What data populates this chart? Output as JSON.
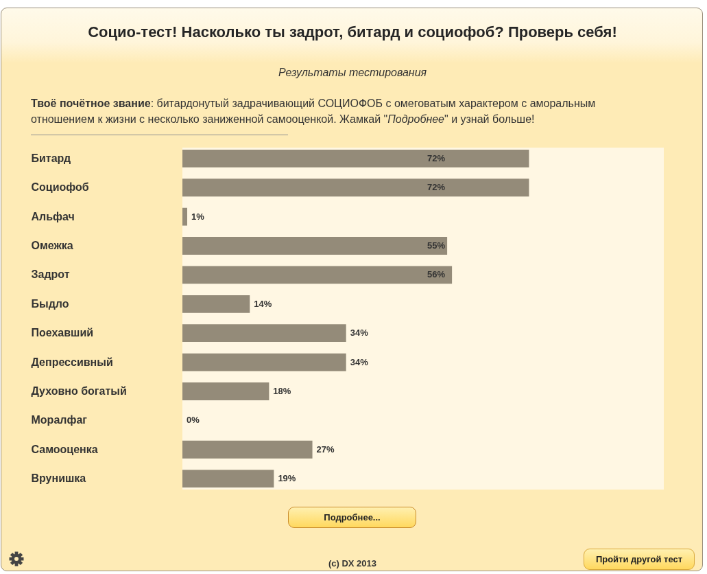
{
  "chart_data": {
    "type": "bar",
    "orientation": "horizontal",
    "title": "Социо-тест! Насколько ты задрот, битард и социофоб? Проверь себя!",
    "subtitle": "Результаты тестирования",
    "categories": [
      "Битард",
      "Социофоб",
      "Альфач",
      "Омежка",
      "Задрот",
      "Быдло",
      "Поехавший",
      "Депрессивный",
      "Духовно богатый",
      "Моралфаг",
      "Самооценка",
      "Врунишка"
    ],
    "values": [
      72,
      72,
      1,
      55,
      56,
      14,
      34,
      34,
      18,
      0,
      27,
      19
    ],
    "value_labels": [
      "72%",
      "72%",
      "1%",
      "55%",
      "56%",
      "14%",
      "34%",
      "34%",
      "18%",
      "0%",
      "27%",
      "19%"
    ],
    "color": "#948b79",
    "xlim": [
      0,
      100
    ],
    "tick_labels": "y",
    "annotations": [
      "Твоё почётное звание: битардонутый задрачивающий СОЦИОФОБ с омеговатым характером с аморальным отношением к жизни с несколько заниженной самооценкой. Жамкай \"Подробнее\" и узнай больше!",
      "Подробнее...",
      "(c) DX 2013",
      "Пройти другой тест"
    ]
  }
}
